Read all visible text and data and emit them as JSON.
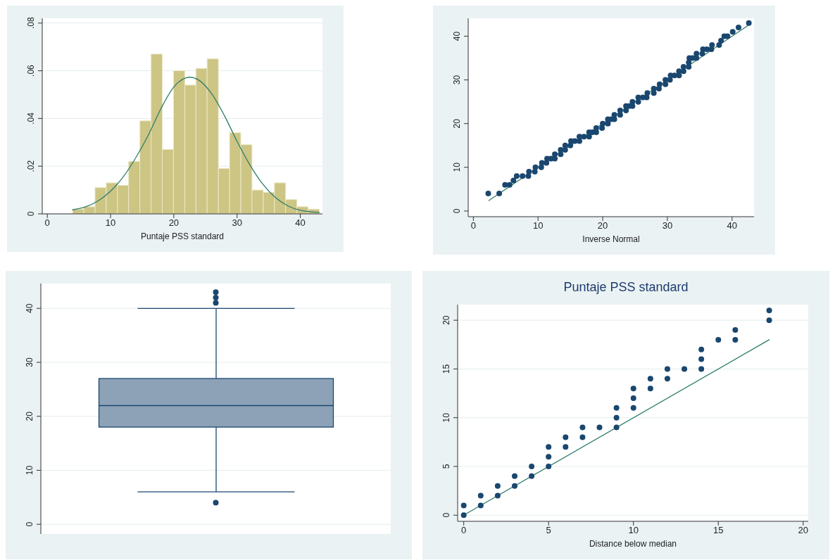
{
  "chart_data": [
    {
      "type": "histogram",
      "xlabel": "Puntaje PSS standard",
      "bins": [
        4,
        5.77,
        7.55,
        9.32,
        11.09,
        12.86,
        14.64,
        16.41,
        18.18,
        19.95,
        21.73,
        23.5,
        25.27,
        27.05,
        28.82,
        30.59,
        32.36,
        34.14,
        35.91,
        37.68,
        39.45,
        41.23,
        43
      ],
      "series": [
        {
          "color": "#cdc584",
          "values": [
            0.002,
            0.003,
            0.011,
            0.013,
            0.012,
            0.022,
            0.039,
            0.067,
            0.027,
            0.06,
            0.054,
            0.061,
            0.065,
            0.019,
            0.034,
            0.029,
            0.01,
            0.009,
            0.013,
            0.006,
            0.003,
            0.002
          ]
        },
        {
          "type": "line",
          "color": "#2e7d6b",
          "x": [
            4,
            6,
            8,
            10,
            12,
            14,
            16,
            18,
            20,
            22,
            22.5,
            24,
            26,
            28,
            30,
            32,
            34,
            36,
            38,
            40,
            43
          ],
          "values": [
            0.0017,
            0.0029,
            0.0054,
            0.0095,
            0.0155,
            0.0236,
            0.0332,
            0.0443,
            0.0532,
            0.0571,
            0.0573,
            0.056,
            0.0503,
            0.0412,
            0.0304,
            0.0207,
            0.0127,
            0.007,
            0.0034,
            0.0015,
            0.0006
          ]
        }
      ],
      "xlim": [
        -0.8,
        43.5
      ],
      "ylim": [
        0,
        0.082
      ],
      "xticks": [
        0,
        10,
        20,
        30,
        40
      ],
      "yticks": [
        0,
        {
          "value": 0.02,
          "label": ".02"
        },
        {
          "value": 0.04,
          "label": ".04"
        },
        {
          "value": 0.06,
          "label": ".06"
        },
        {
          "value": 0.08,
          "label": ".08"
        }
      ],
      "grid": "y"
    },
    {
      "type": "scatter",
      "xlabel": "Inverse Normal",
      "series": [
        {
          "marker": "circle",
          "color": "#1a476f",
          "x": [
            2.3,
            4.0,
            4.9,
            5.6,
            6.2,
            6.7,
            7.6,
            8.5,
            8.6,
            9.5,
            9.6,
            10.5,
            10.6,
            11.3,
            11.4,
            12.0,
            12.6,
            12.6,
            13.5,
            13.5,
            14.2,
            14.2,
            15.0,
            15.1,
            15.7,
            16.4,
            16.4,
            17.1,
            17.9,
            17.9,
            18.4,
            19.0,
            19.0,
            19.9,
            20.0,
            20.8,
            20.8,
            21.3,
            21.8,
            21.8,
            22.7,
            22.7,
            23.6,
            23.6,
            24.1,
            24.6,
            24.6,
            25.5,
            25.5,
            26.2,
            26.8,
            26.9,
            27.9,
            27.9,
            28.7,
            28.8,
            29.7,
            29.7,
            30.4,
            30.5,
            31.1,
            31.8,
            31.8,
            32.5,
            32.5,
            33.3,
            33.3,
            33.4,
            33.9,
            34.5,
            34.5,
            35.4,
            35.5,
            36.1,
            36.8,
            36.9,
            38.0,
            38.3,
            38.8,
            39.3,
            40.1,
            41.0,
            42.6
          ],
          "values": [
            4,
            4,
            6,
            6,
            7,
            8,
            8,
            8,
            9,
            9,
            10,
            10,
            11,
            11,
            12,
            12,
            12,
            13,
            13,
            14,
            14,
            15,
            15,
            16,
            16,
            16,
            17,
            17,
            17,
            18,
            18,
            18,
            19,
            19,
            20,
            20,
            21,
            21,
            21,
            22,
            22,
            23,
            23,
            24,
            24,
            24,
            25,
            25,
            26,
            26,
            26,
            27,
            27,
            28,
            28,
            29,
            29,
            30,
            30,
            31,
            31,
            31,
            32,
            32,
            33,
            33,
            34,
            35,
            35,
            35,
            36,
            36,
            37,
            37,
            37,
            38,
            38,
            39,
            40,
            40,
            41,
            42,
            43
          ]
        },
        {
          "type": "line",
          "color": "#2e7d6b",
          "x": [
            2.4,
            42.7
          ],
          "values": [
            2.4,
            42.7
          ]
        }
      ],
      "xlim": [
        -0.8,
        43.4
      ],
      "ylim": [
        -1.3,
        44.1
      ],
      "xticks": [
        0,
        10,
        20,
        30,
        40
      ],
      "yticks": [
        0,
        10,
        20,
        30,
        40
      ],
      "grid": false
    },
    {
      "type": "box",
      "categories": [
        null
      ],
      "tick_labels": "y",
      "series": [
        {
          "color": "#8da2b7",
          "boxes": [
            {
              "low": 6,
              "q1": 18,
              "median": 22,
              "q3": 27,
              "high": 40,
              "outliers": [
                4,
                41,
                42,
                43
              ]
            }
          ]
        }
      ],
      "ylim": [
        -1.8,
        44.6
      ],
      "yticks": [
        0,
        10,
        20,
        30,
        40
      ],
      "grid": "y"
    },
    {
      "type": "scatter",
      "title": "Puntaje PSS standard",
      "xlabel": "Distance below median",
      "series": [
        {
          "marker": "circle",
          "color": "#1a476f",
          "x": [
            0,
            0,
            1,
            1,
            2,
            2,
            3,
            3,
            4,
            4,
            5,
            5,
            5,
            6,
            6,
            7,
            7,
            8,
            9,
            9,
            9,
            10,
            10,
            10,
            11,
            11,
            12,
            12,
            13,
            14,
            14,
            14,
            15,
            16,
            16,
            18,
            18
          ],
          "values": [
            0,
            1,
            1,
            2,
            2,
            3,
            3,
            4,
            4,
            5,
            5,
            6,
            7,
            7,
            8,
            8,
            9,
            9,
            9,
            10,
            11,
            11,
            12,
            13,
            13,
            14,
            14,
            15,
            15,
            15,
            16,
            17,
            18,
            18,
            19,
            20,
            21
          ]
        },
        {
          "type": "line",
          "color": "#2e7d6b",
          "x": [
            0,
            18
          ],
          "values": [
            0,
            18
          ]
        }
      ],
      "xlim": [
        -0.36,
        20.3
      ],
      "ylim": [
        -0.63,
        21.6
      ],
      "xticks": [
        0,
        5,
        10,
        15,
        20
      ],
      "yticks": [
        0,
        5,
        10,
        15,
        20
      ],
      "grid": "y"
    }
  ]
}
